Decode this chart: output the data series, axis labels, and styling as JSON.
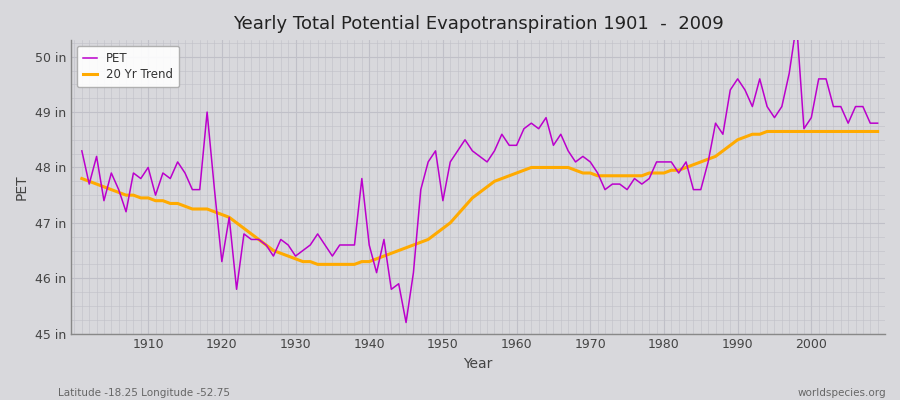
{
  "title": "Yearly Total Potential Evapotranspiration 1901  -  2009",
  "xlabel": "Year",
  "ylabel": "PET",
  "footnote_left": "Latitude -18.25 Longitude -52.75",
  "footnote_right": "worldspecies.org",
  "ylim": [
    45.0,
    50.3
  ],
  "yticks": [
    45,
    46,
    47,
    48,
    49,
    50
  ],
  "ytick_labels": [
    "45 in",
    "46 in",
    "47 in",
    "48 in",
    "49 in",
    "50 in"
  ],
  "xlim": [
    1899.5,
    2010
  ],
  "bg_color": "#d8d8dc",
  "plot_bg_color": "#d8d8dc",
  "grid_color": "#c0c0c8",
  "pet_color": "#bb00cc",
  "trend_color": "#ffaa00",
  "pet_label": "PET",
  "trend_label": "20 Yr Trend",
  "years": [
    1901,
    1902,
    1903,
    1904,
    1905,
    1906,
    1907,
    1908,
    1909,
    1910,
    1911,
    1912,
    1913,
    1914,
    1915,
    1916,
    1917,
    1918,
    1919,
    1920,
    1921,
    1922,
    1923,
    1924,
    1925,
    1926,
    1927,
    1928,
    1929,
    1930,
    1931,
    1932,
    1933,
    1934,
    1935,
    1936,
    1937,
    1938,
    1939,
    1940,
    1941,
    1942,
    1943,
    1944,
    1945,
    1946,
    1947,
    1948,
    1949,
    1950,
    1951,
    1952,
    1953,
    1954,
    1955,
    1956,
    1957,
    1958,
    1959,
    1960,
    1961,
    1962,
    1963,
    1964,
    1965,
    1966,
    1967,
    1968,
    1969,
    1970,
    1971,
    1972,
    1973,
    1974,
    1975,
    1976,
    1977,
    1978,
    1979,
    1980,
    1981,
    1982,
    1983,
    1984,
    1985,
    1986,
    1987,
    1988,
    1989,
    1990,
    1991,
    1992,
    1993,
    1994,
    1995,
    1996,
    1997,
    1998,
    1999,
    2000,
    2001,
    2002,
    2003,
    2004,
    2005,
    2006,
    2007,
    2008,
    2009
  ],
  "pet": [
    48.3,
    47.7,
    48.2,
    47.4,
    47.9,
    47.6,
    47.2,
    47.9,
    47.8,
    48.0,
    47.5,
    47.9,
    47.8,
    48.1,
    47.9,
    47.6,
    47.6,
    49.0,
    47.6,
    46.3,
    47.1,
    45.8,
    46.8,
    46.7,
    46.7,
    46.6,
    46.4,
    46.7,
    46.6,
    46.4,
    46.5,
    46.6,
    46.8,
    46.6,
    46.4,
    46.6,
    46.6,
    46.6,
    47.8,
    46.6,
    46.1,
    46.7,
    45.8,
    45.9,
    45.2,
    46.1,
    47.6,
    48.1,
    48.3,
    47.4,
    48.1,
    48.3,
    48.5,
    48.3,
    48.2,
    48.1,
    48.3,
    48.6,
    48.4,
    48.4,
    48.7,
    48.8,
    48.7,
    48.9,
    48.4,
    48.6,
    48.3,
    48.1,
    48.2,
    48.1,
    47.9,
    47.6,
    47.7,
    47.7,
    47.6,
    47.8,
    47.7,
    47.8,
    48.1,
    48.1,
    48.1,
    47.9,
    48.1,
    47.6,
    47.6,
    48.1,
    48.8,
    48.6,
    49.4,
    49.6,
    49.4,
    49.1,
    49.6,
    49.1,
    48.9,
    49.1,
    49.7,
    50.6,
    48.7,
    48.9,
    49.6,
    49.6,
    49.1,
    49.1,
    48.8,
    49.1,
    49.1,
    48.8,
    48.8
  ],
  "trend": [
    47.8,
    47.75,
    47.7,
    47.65,
    47.6,
    47.55,
    47.5,
    47.5,
    47.45,
    47.45,
    47.4,
    47.4,
    47.35,
    47.35,
    47.3,
    47.25,
    47.25,
    47.25,
    47.2,
    47.15,
    47.1,
    47.0,
    46.9,
    46.8,
    46.7,
    46.6,
    46.5,
    46.45,
    46.4,
    46.35,
    46.3,
    46.3,
    46.25,
    46.25,
    46.25,
    46.25,
    46.25,
    46.25,
    46.3,
    46.3,
    46.35,
    46.4,
    46.45,
    46.5,
    46.55,
    46.6,
    46.65,
    46.7,
    46.8,
    46.9,
    47.0,
    47.15,
    47.3,
    47.45,
    47.55,
    47.65,
    47.75,
    47.8,
    47.85,
    47.9,
    47.95,
    48.0,
    48.0,
    48.0,
    48.0,
    48.0,
    48.0,
    47.95,
    47.9,
    47.9,
    47.85,
    47.85,
    47.85,
    47.85,
    47.85,
    47.85,
    47.85,
    47.9,
    47.9,
    47.9,
    47.95,
    47.95,
    48.0,
    48.05,
    48.1,
    48.15,
    48.2,
    48.3,
    48.4,
    48.5,
    48.55,
    48.6,
    48.6,
    48.65,
    48.65,
    48.65,
    48.65,
    48.65,
    48.65,
    48.65,
    48.65,
    48.65,
    48.65,
    48.65,
    48.65,
    48.65,
    48.65,
    48.65,
    48.65
  ]
}
